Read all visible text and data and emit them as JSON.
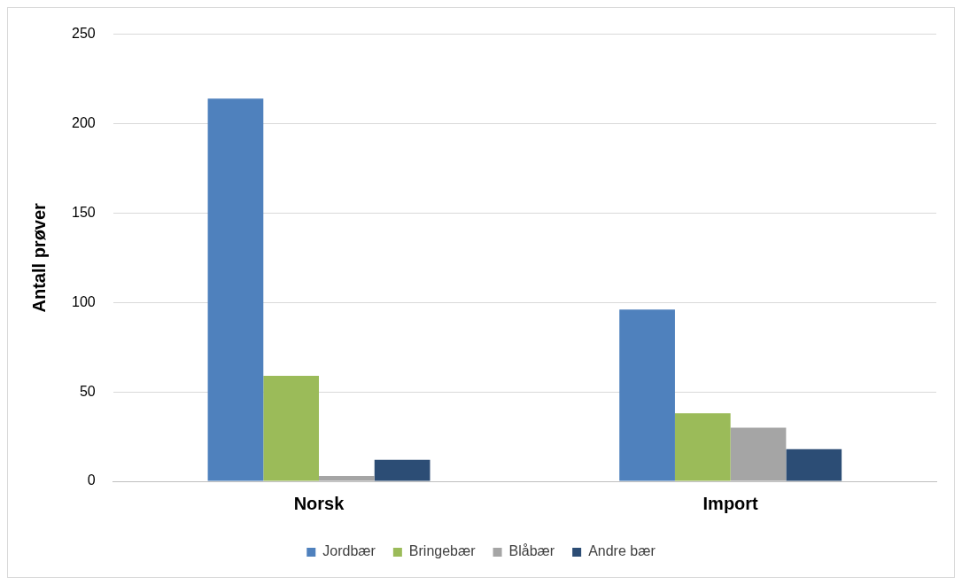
{
  "chart_data": {
    "type": "bar",
    "ylabel": "Antall prøver",
    "categories": [
      "Norsk",
      "Import"
    ],
    "series": [
      {
        "name": "Jordbær",
        "color": "#4f81bd",
        "values": [
          214,
          96
        ]
      },
      {
        "name": "Bringebær",
        "color": "#9bbb59",
        "values": [
          59,
          38
        ]
      },
      {
        "name": "Blåbær",
        "color": "#a5a5a5",
        "values": [
          3,
          30
        ]
      },
      {
        "name": "Andre bær",
        "color": "#2c4d75",
        "values": [
          12,
          18
        ]
      }
    ],
    "ylim": [
      0,
      250
    ],
    "yticks": [
      0,
      50,
      100,
      150,
      200,
      250
    ],
    "grid": "y",
    "legend": "bottom"
  }
}
